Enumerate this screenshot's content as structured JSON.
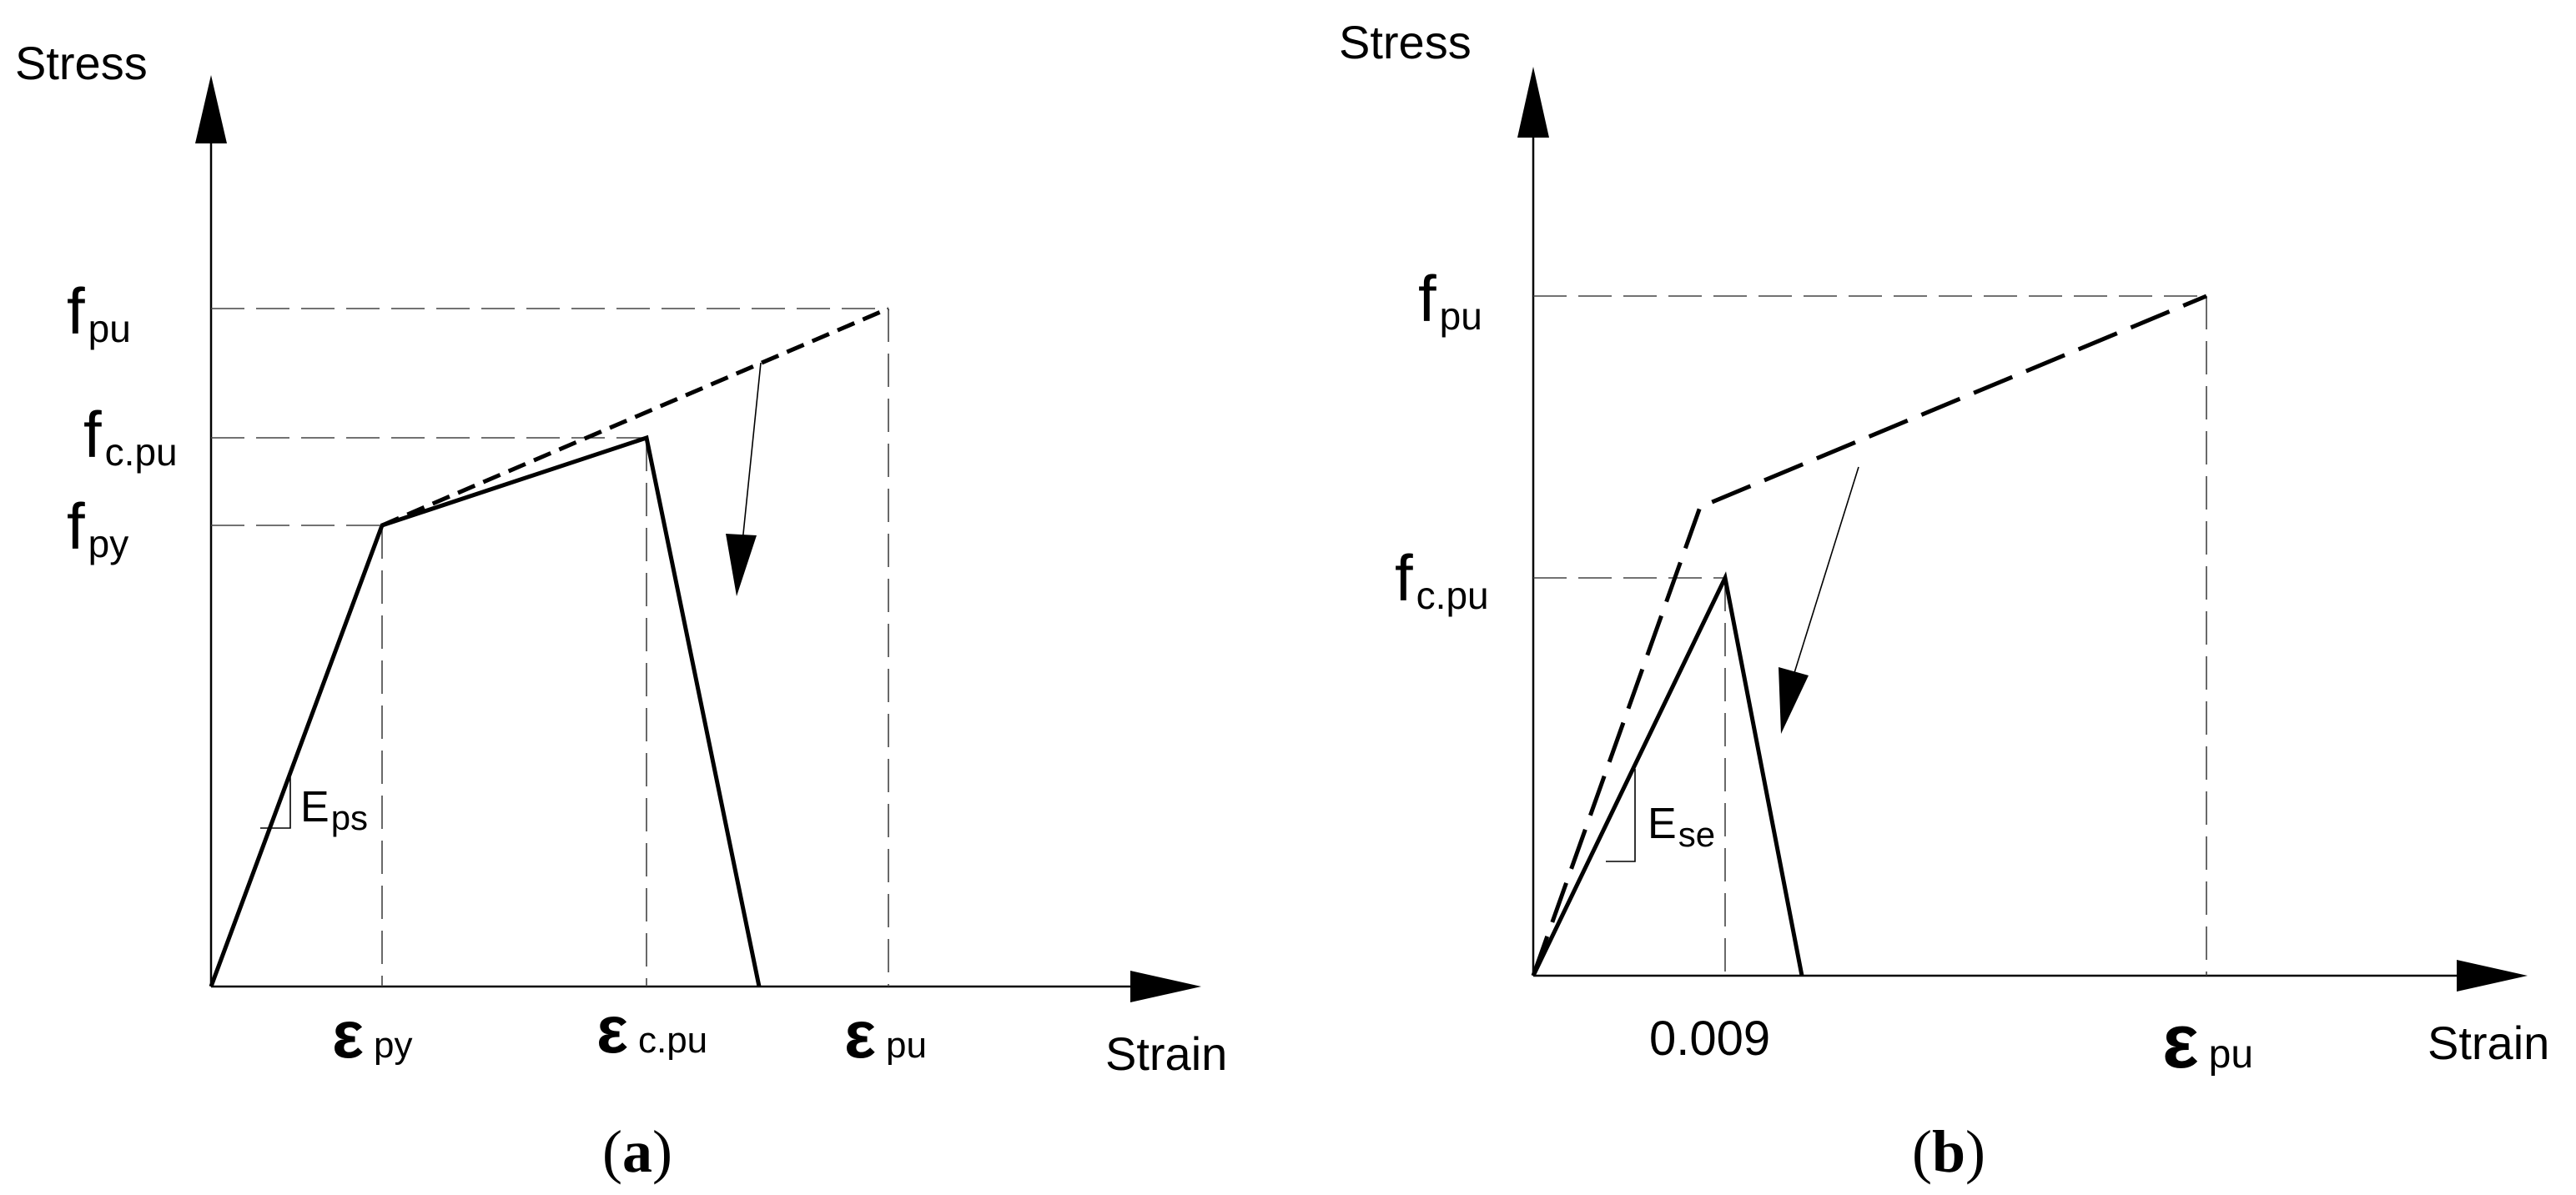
{
  "panel_a": {
    "y_axis_label": "Stress",
    "x_axis_label": "Strain",
    "fpu": {
      "main": "f",
      "sub": "pu"
    },
    "fcpu": {
      "main": "f",
      "sub": "c.pu"
    },
    "fpy": {
      "main": "f",
      "sub": "py"
    },
    "slope": {
      "main": "E",
      "sub": "ps"
    },
    "eps_py": {
      "main": "ε",
      "sub": "py"
    },
    "eps_cpu": {
      "main": "ε",
      "sub": "c.pu"
    },
    "eps_pu": {
      "main": "ε",
      "sub": "pu"
    },
    "caption": {
      "open": "(",
      "letter": "a",
      "close": ")"
    }
  },
  "panel_b": {
    "y_axis_label": "Stress",
    "x_axis_label": "Strain",
    "fpu": {
      "main": "f",
      "sub": "pu"
    },
    "fcpu": {
      "main": "f",
      "sub": "c.pu"
    },
    "slope": {
      "main": "E",
      "sub": "se"
    },
    "x_value": "0.009",
    "eps_pu": {
      "main": "ε",
      "sub": "pu"
    },
    "caption": {
      "open": "(",
      "letter": "b",
      "close": ")"
    }
  }
}
